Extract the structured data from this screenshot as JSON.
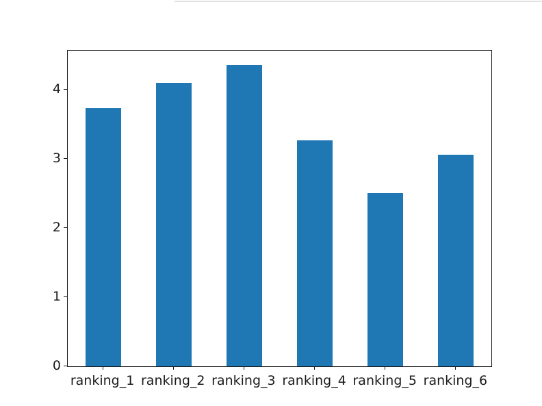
{
  "page": {
    "background_color": "#ffffff",
    "top_divider_color": "#e2e2e2"
  },
  "chart_data": {
    "type": "bar",
    "title": "",
    "xlabel": "",
    "ylabel": "",
    "categories": [
      "ranking_1",
      "ranking_2",
      "ranking_3",
      "ranking_4",
      "ranking_5",
      "ranking_6"
    ],
    "values": [
      3.74,
      4.1,
      4.36,
      3.27,
      2.51,
      3.06
    ],
    "yticks": [
      0,
      1,
      2,
      3,
      4
    ],
    "ytick_labels": [
      "0",
      "1",
      "2",
      "3",
      "4"
    ],
    "ylim": [
      0,
      4.57
    ],
    "bar_color": "#1f77b4",
    "bar_width_fraction": 0.5,
    "grid": false,
    "legend": false,
    "spine_color": "#1a1a1a",
    "text_color": "#1a1a1a"
  }
}
